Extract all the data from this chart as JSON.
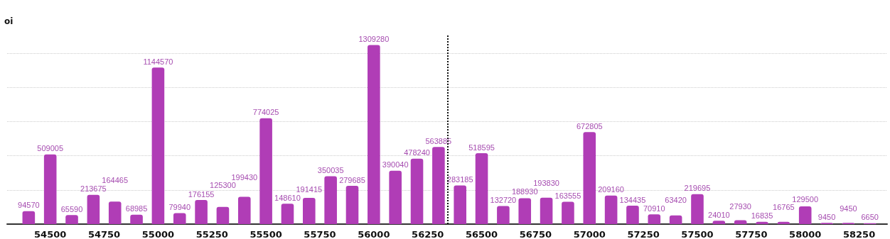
{
  "chart_data": {
    "type": "bar",
    "ylabel": "oi",
    "x": [
      54400,
      54500,
      54600,
      54700,
      54800,
      54900,
      55000,
      55100,
      55200,
      55300,
      55400,
      55500,
      55600,
      55700,
      55800,
      55900,
      56000,
      56100,
      56200,
      56300,
      56400,
      56500,
      56600,
      56700,
      56800,
      56900,
      57000,
      57100,
      57200,
      57300,
      57400,
      57500,
      57600,
      57700,
      57800,
      57900,
      58000,
      58100,
      58200,
      58300
    ],
    "values": [
      94570,
      509005,
      65590,
      213675,
      164465,
      68985,
      1144570,
      79940,
      176155,
      125300,
      199430,
      774025,
      148610,
      191415,
      350035,
      279685,
      1309280,
      390040,
      478240,
      563885,
      283185,
      518595,
      132720,
      188930,
      193830,
      163555,
      672805,
      209160,
      134435,
      70910,
      63420,
      219695,
      24010,
      27930,
      16835,
      16765,
      129500,
      9450,
      9450,
      6650
    ],
    "color": "#b03db6",
    "data_labels": true,
    "xlim": [
      54300,
      58380
    ],
    "xticks": [
      54500,
      54750,
      55000,
      55250,
      55500,
      55750,
      56000,
      56250,
      56500,
      56750,
      57000,
      57250,
      57500,
      57750,
      58000,
      58250
    ],
    "ylim": [
      0,
      1390000
    ],
    "yticks": [
      {
        "value": 250000,
        "label": null
      },
      {
        "value": 500000,
        "label": null
      },
      {
        "value": 750000,
        "label": null
      },
      {
        "value": 1000000,
        "label": null
      },
      {
        "value": 1250000,
        "label": null
      }
    ],
    "grid": "y",
    "tick_labels": "x",
    "ref_lines": [
      {
        "axis": "x",
        "value": 56342,
        "label": null,
        "color": "#111111",
        "line_style": "dotted"
      }
    ]
  }
}
